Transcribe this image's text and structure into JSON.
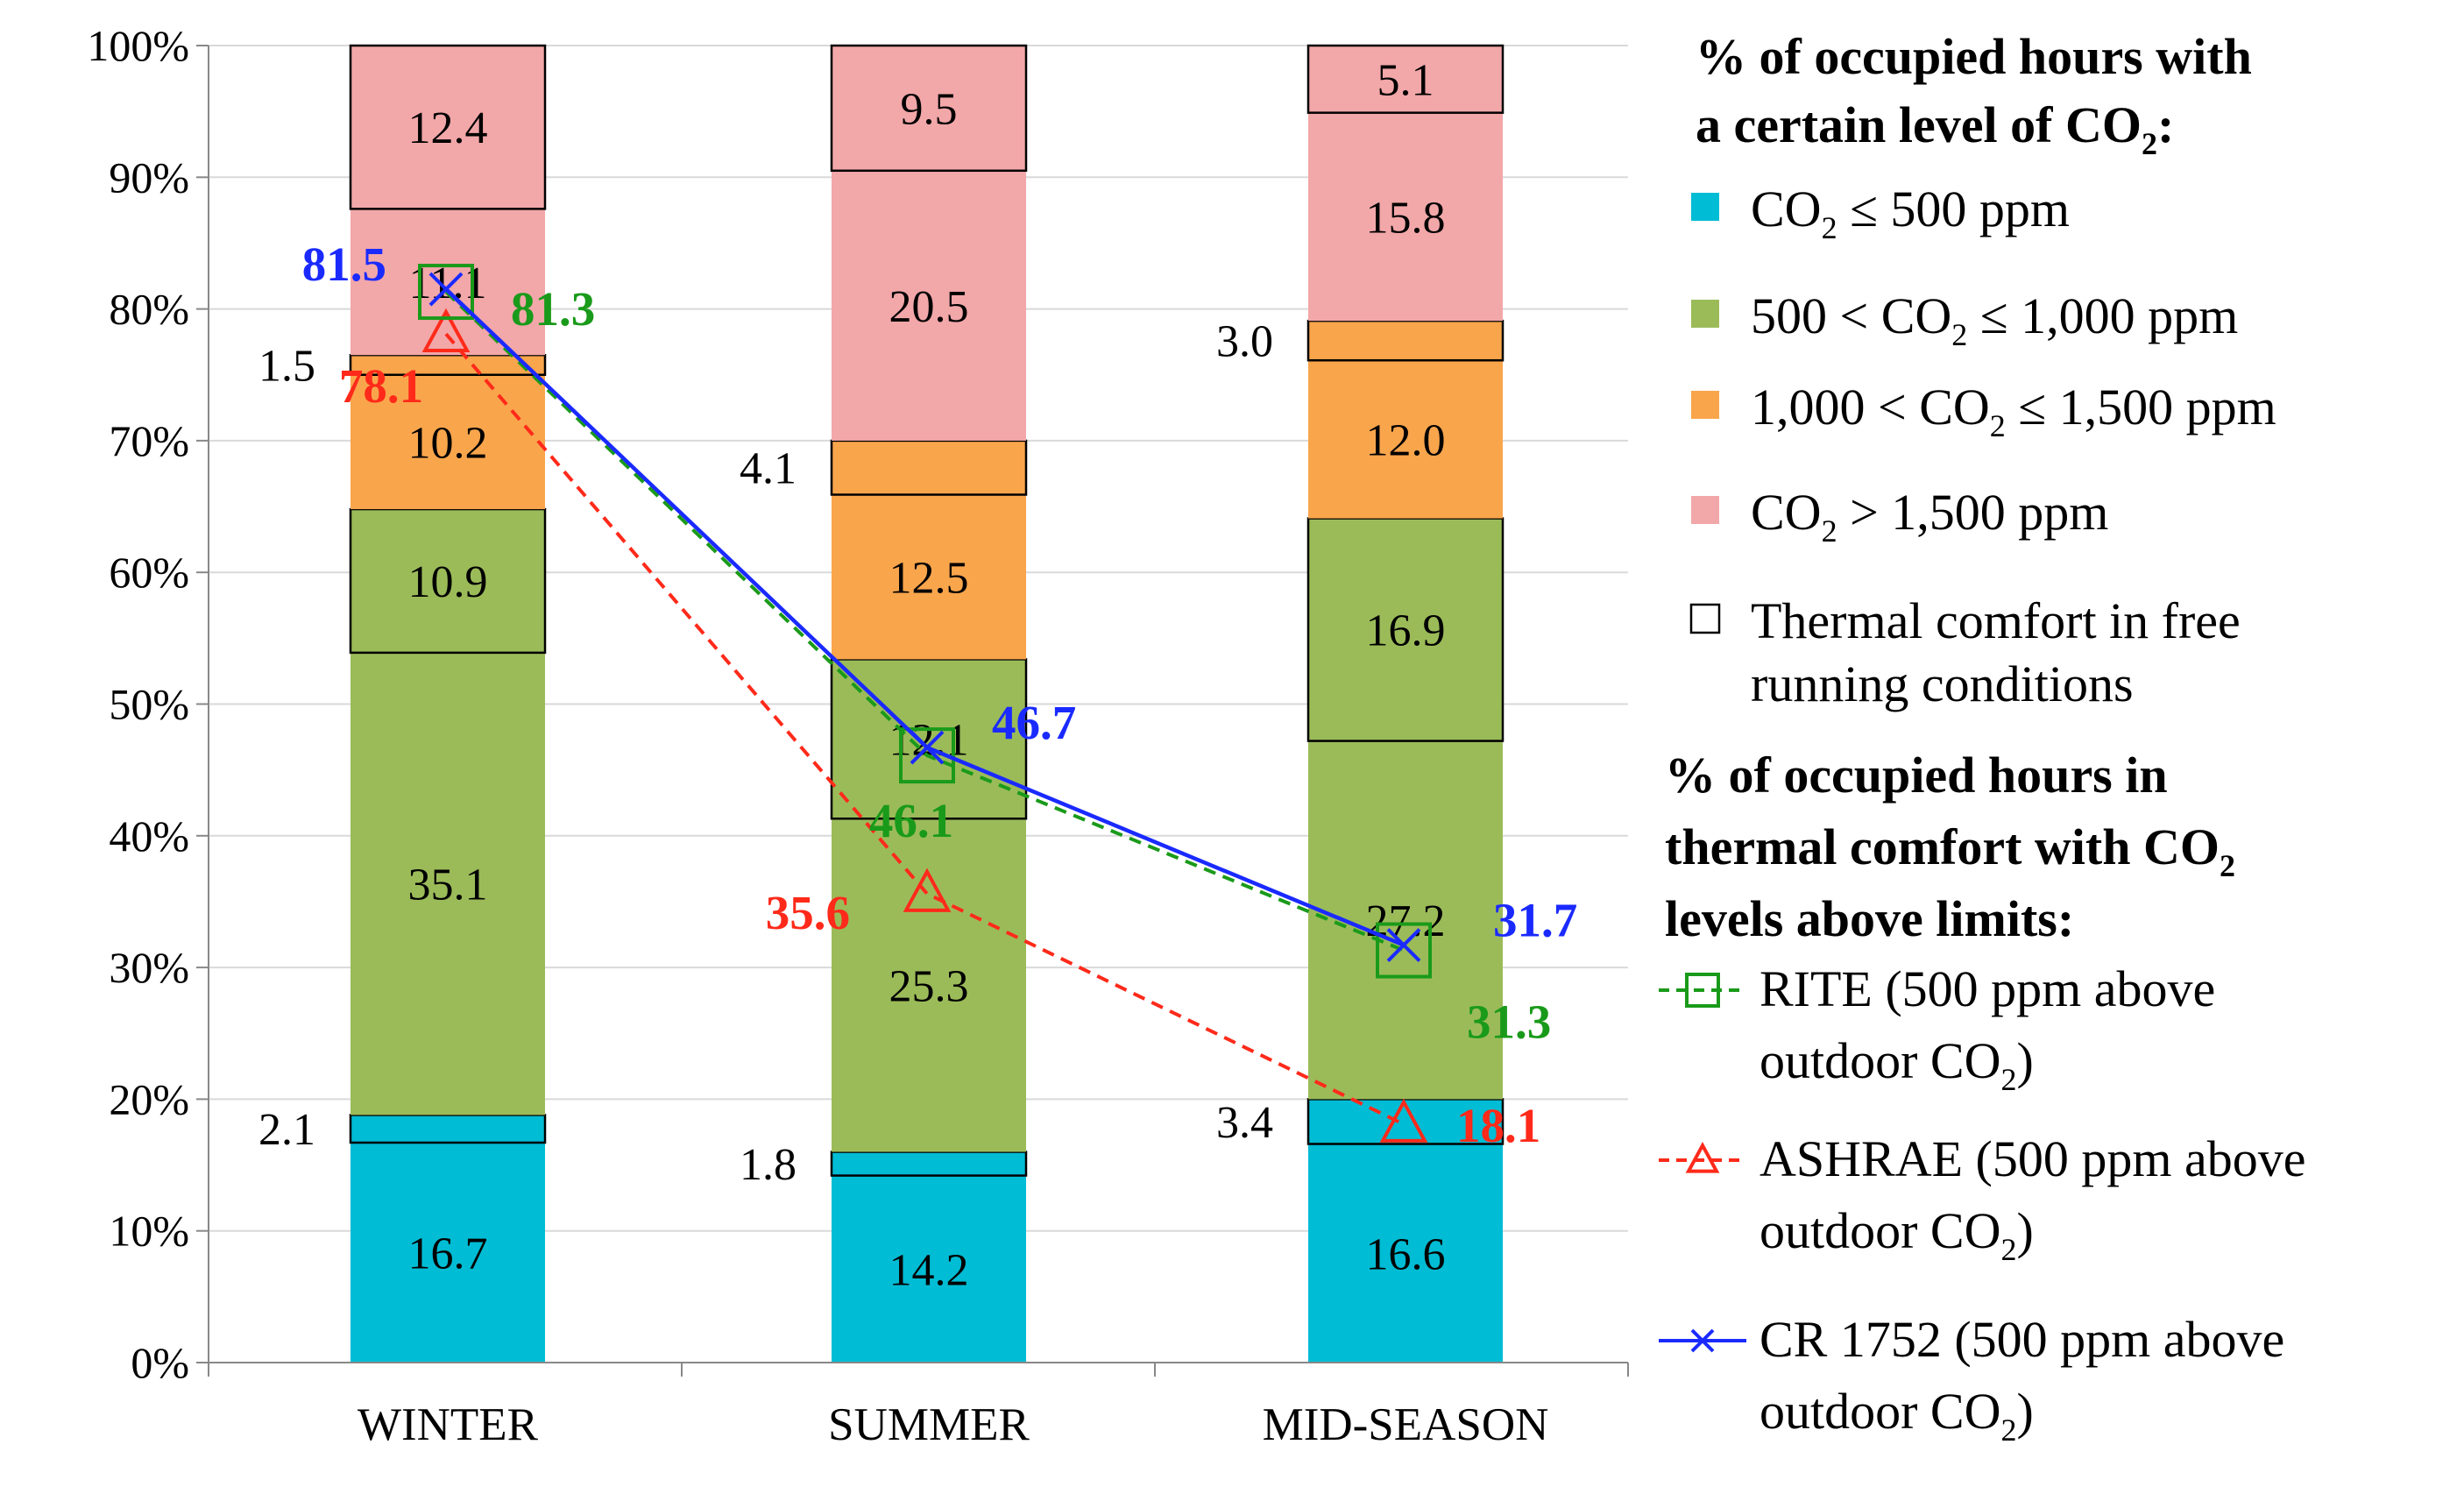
{
  "chart_data": {
    "type": "bar",
    "stacked": true,
    "categories": [
      "WINTER",
      "SUMMER",
      "MID-SEASON"
    ],
    "ylim": [
      0,
      100
    ],
    "y_ticks": [
      "0%",
      "10%",
      "20%",
      "30%",
      "40%",
      "50%",
      "60%",
      "70%",
      "80%",
      "90%",
      "100%"
    ],
    "grid": true,
    "colors": {
      "co2_le_500": "#00bcd4",
      "co2_500_1000": "#9bbb59",
      "co2_1000_1500": "#f9a54c",
      "co2_gt_1500": "#f2a7a9",
      "rite": "#1a9a1a",
      "ashrae": "#ff2a1a",
      "cr1752": "#1a2aff",
      "axis": "#888888"
    },
    "series": [
      {
        "key": "co2_le_500",
        "name": "CO2 ≤ 500 ppm",
        "color": "#00bcd4",
        "segments": [
          [
            {
              "v": 16.7,
              "tc": false,
              "label": "16.7"
            },
            {
              "v": 2.1,
              "tc": true,
              "label": "2.1"
            }
          ],
          [
            {
              "v": 14.2,
              "tc": false,
              "label": "14.2"
            },
            {
              "v": 1.8,
              "tc": true,
              "label": "1.8"
            }
          ],
          [
            {
              "v": 16.6,
              "tc": false,
              "label": "16.6"
            },
            {
              "v": 3.4,
              "tc": true,
              "label": "3.4"
            }
          ]
        ]
      },
      {
        "key": "co2_500_1000",
        "name": "500 < CO2 ≤ 1,000 ppm",
        "color": "#9bbb59",
        "segments": [
          [
            {
              "v": 35.1,
              "tc": false,
              "label": "35.1"
            },
            {
              "v": 10.9,
              "tc": true,
              "label": "10.9"
            }
          ],
          [
            {
              "v": 25.3,
              "tc": false,
              "label": "25.3"
            },
            {
              "v": 12.1,
              "tc": true,
              "label": "12.1"
            }
          ],
          [
            {
              "v": 27.2,
              "tc": false,
              "label": "27.2"
            },
            {
              "v": 16.9,
              "tc": true,
              "label": "16.9"
            }
          ]
        ]
      },
      {
        "key": "co2_1000_1500",
        "name": "1,000 < CO2 ≤ 1,500 ppm",
        "color": "#f9a54c",
        "segments": [
          [
            {
              "v": 10.2,
              "tc": false,
              "label": "10.2"
            },
            {
              "v": 1.5,
              "tc": true,
              "label": "1.5"
            }
          ],
          [
            {
              "v": 12.5,
              "tc": false,
              "label": "12.5"
            },
            {
              "v": 4.1,
              "tc": true,
              "label": "4.1"
            }
          ],
          [
            {
              "v": 12.0,
              "tc": false,
              "label": "12.0"
            },
            {
              "v": 3.0,
              "tc": true,
              "label": "3.0"
            }
          ]
        ]
      },
      {
        "key": "co2_gt_1500",
        "name": "CO2 > 1,500 ppm",
        "color": "#f2a7a9",
        "segments": [
          [
            {
              "v": 11.1,
              "tc": false,
              "label": "11.1"
            },
            {
              "v": 12.4,
              "tc": true,
              "label": "12.4"
            }
          ],
          [
            {
              "v": 20.5,
              "tc": false,
              "label": "20.5"
            },
            {
              "v": 9.5,
              "tc": true,
              "label": "9.5"
            }
          ],
          [
            {
              "v": 15.8,
              "tc": false,
              "label": "15.8"
            },
            {
              "v": 5.1,
              "tc": true,
              "label": "5.1"
            }
          ]
        ]
      }
    ],
    "lines": [
      {
        "key": "rite",
        "name": "RITE (500 ppm above outdoor CO2)",
        "marker": "square",
        "dash": true,
        "color": "#1a9a1a",
        "values": [
          81.3,
          46.1,
          31.3
        ],
        "labels": [
          "81.3",
          "46.1",
          "31.3"
        ]
      },
      {
        "key": "ashrae",
        "name": "ASHRAE (500 ppm above outdoor CO2)",
        "marker": "triangle",
        "dash": true,
        "color": "#ff2a1a",
        "values": [
          78.1,
          35.6,
          18.1
        ],
        "labels": [
          "78.1",
          "35.6",
          "18.1"
        ]
      },
      {
        "key": "cr1752",
        "name": "CR 1752 (500 ppm above outdoor CO2)",
        "marker": "x",
        "dash": false,
        "color": "#1a2aff",
        "values": [
          81.5,
          46.7,
          31.7
        ],
        "labels": [
          "81.5",
          "46.7",
          "31.7"
        ]
      }
    ],
    "legend": {
      "placement": "right",
      "head1_line1": "% of occupied hours with",
      "head1_line2": "a certain level of CO",
      "head1_sub": "2",
      "head1_tail": ":",
      "item_le500_pre": "CO",
      "item_le500_post": " ≤ 500 ppm",
      "item_500_1000_pre": "500 < CO",
      "item_500_1000_post": " ≤ 1,000 ppm",
      "item_1000_1500_pre": "1,000 < CO",
      "item_1000_1500_post": " ≤ 1,500 ppm",
      "item_gt1500_pre": "CO",
      "item_gt1500_post": " > 1,500 ppm",
      "sub2": "2",
      "thermal_line1": "Thermal comfort in free",
      "thermal_line2": "running conditions",
      "head2_line1": "% of occupied hours in",
      "head2_line2": "thermal comfort with CO",
      "head2_line3": "levels above limits:",
      "rite_line1": "RITE (500 ppm above",
      "ashrae_line1": "ASHRAE (500 ppm above",
      "cr_line1": "CR 1752 (500 ppm above",
      "outdoor_pre": "outdoor CO",
      "outdoor_post": ")"
    }
  }
}
